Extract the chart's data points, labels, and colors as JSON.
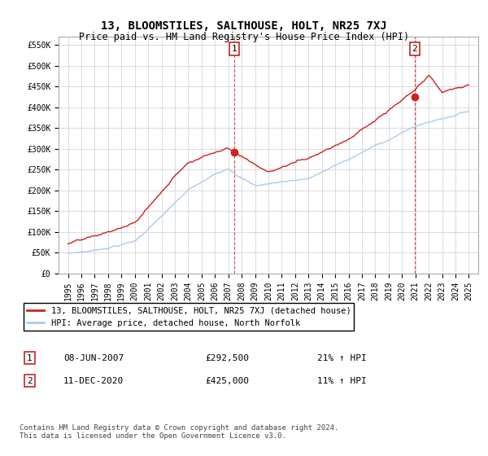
{
  "title": "13, BLOOMSTILES, SALTHOUSE, HOLT, NR25 7XJ",
  "subtitle": "Price paid vs. HM Land Registry's House Price Index (HPI)",
  "ylabel_ticks": [
    "£0",
    "£50K",
    "£100K",
    "£150K",
    "£200K",
    "£250K",
    "£300K",
    "£350K",
    "£400K",
    "£450K",
    "£500K",
    "£550K"
  ],
  "ytick_values": [
    0,
    50000,
    100000,
    150000,
    200000,
    250000,
    300000,
    350000,
    400000,
    450000,
    500000,
    550000
  ],
  "ylim": [
    0,
    570000
  ],
  "hpi_color": "#aaccee",
  "price_color": "#cc2222",
  "marker1_date": 2007.44,
  "marker1_value": 292500,
  "marker2_date": 2020.94,
  "marker2_value": 425000,
  "legend_line1": "13, BLOOMSTILES, SALTHOUSE, HOLT, NR25 7XJ (detached house)",
  "legend_line2": "HPI: Average price, detached house, North Norfolk",
  "footnote": "Contains HM Land Registry data © Crown copyright and database right 2024.\nThis data is licensed under the Open Government Licence v3.0.",
  "background_color": "#ffffff",
  "grid_color": "#cccccc"
}
